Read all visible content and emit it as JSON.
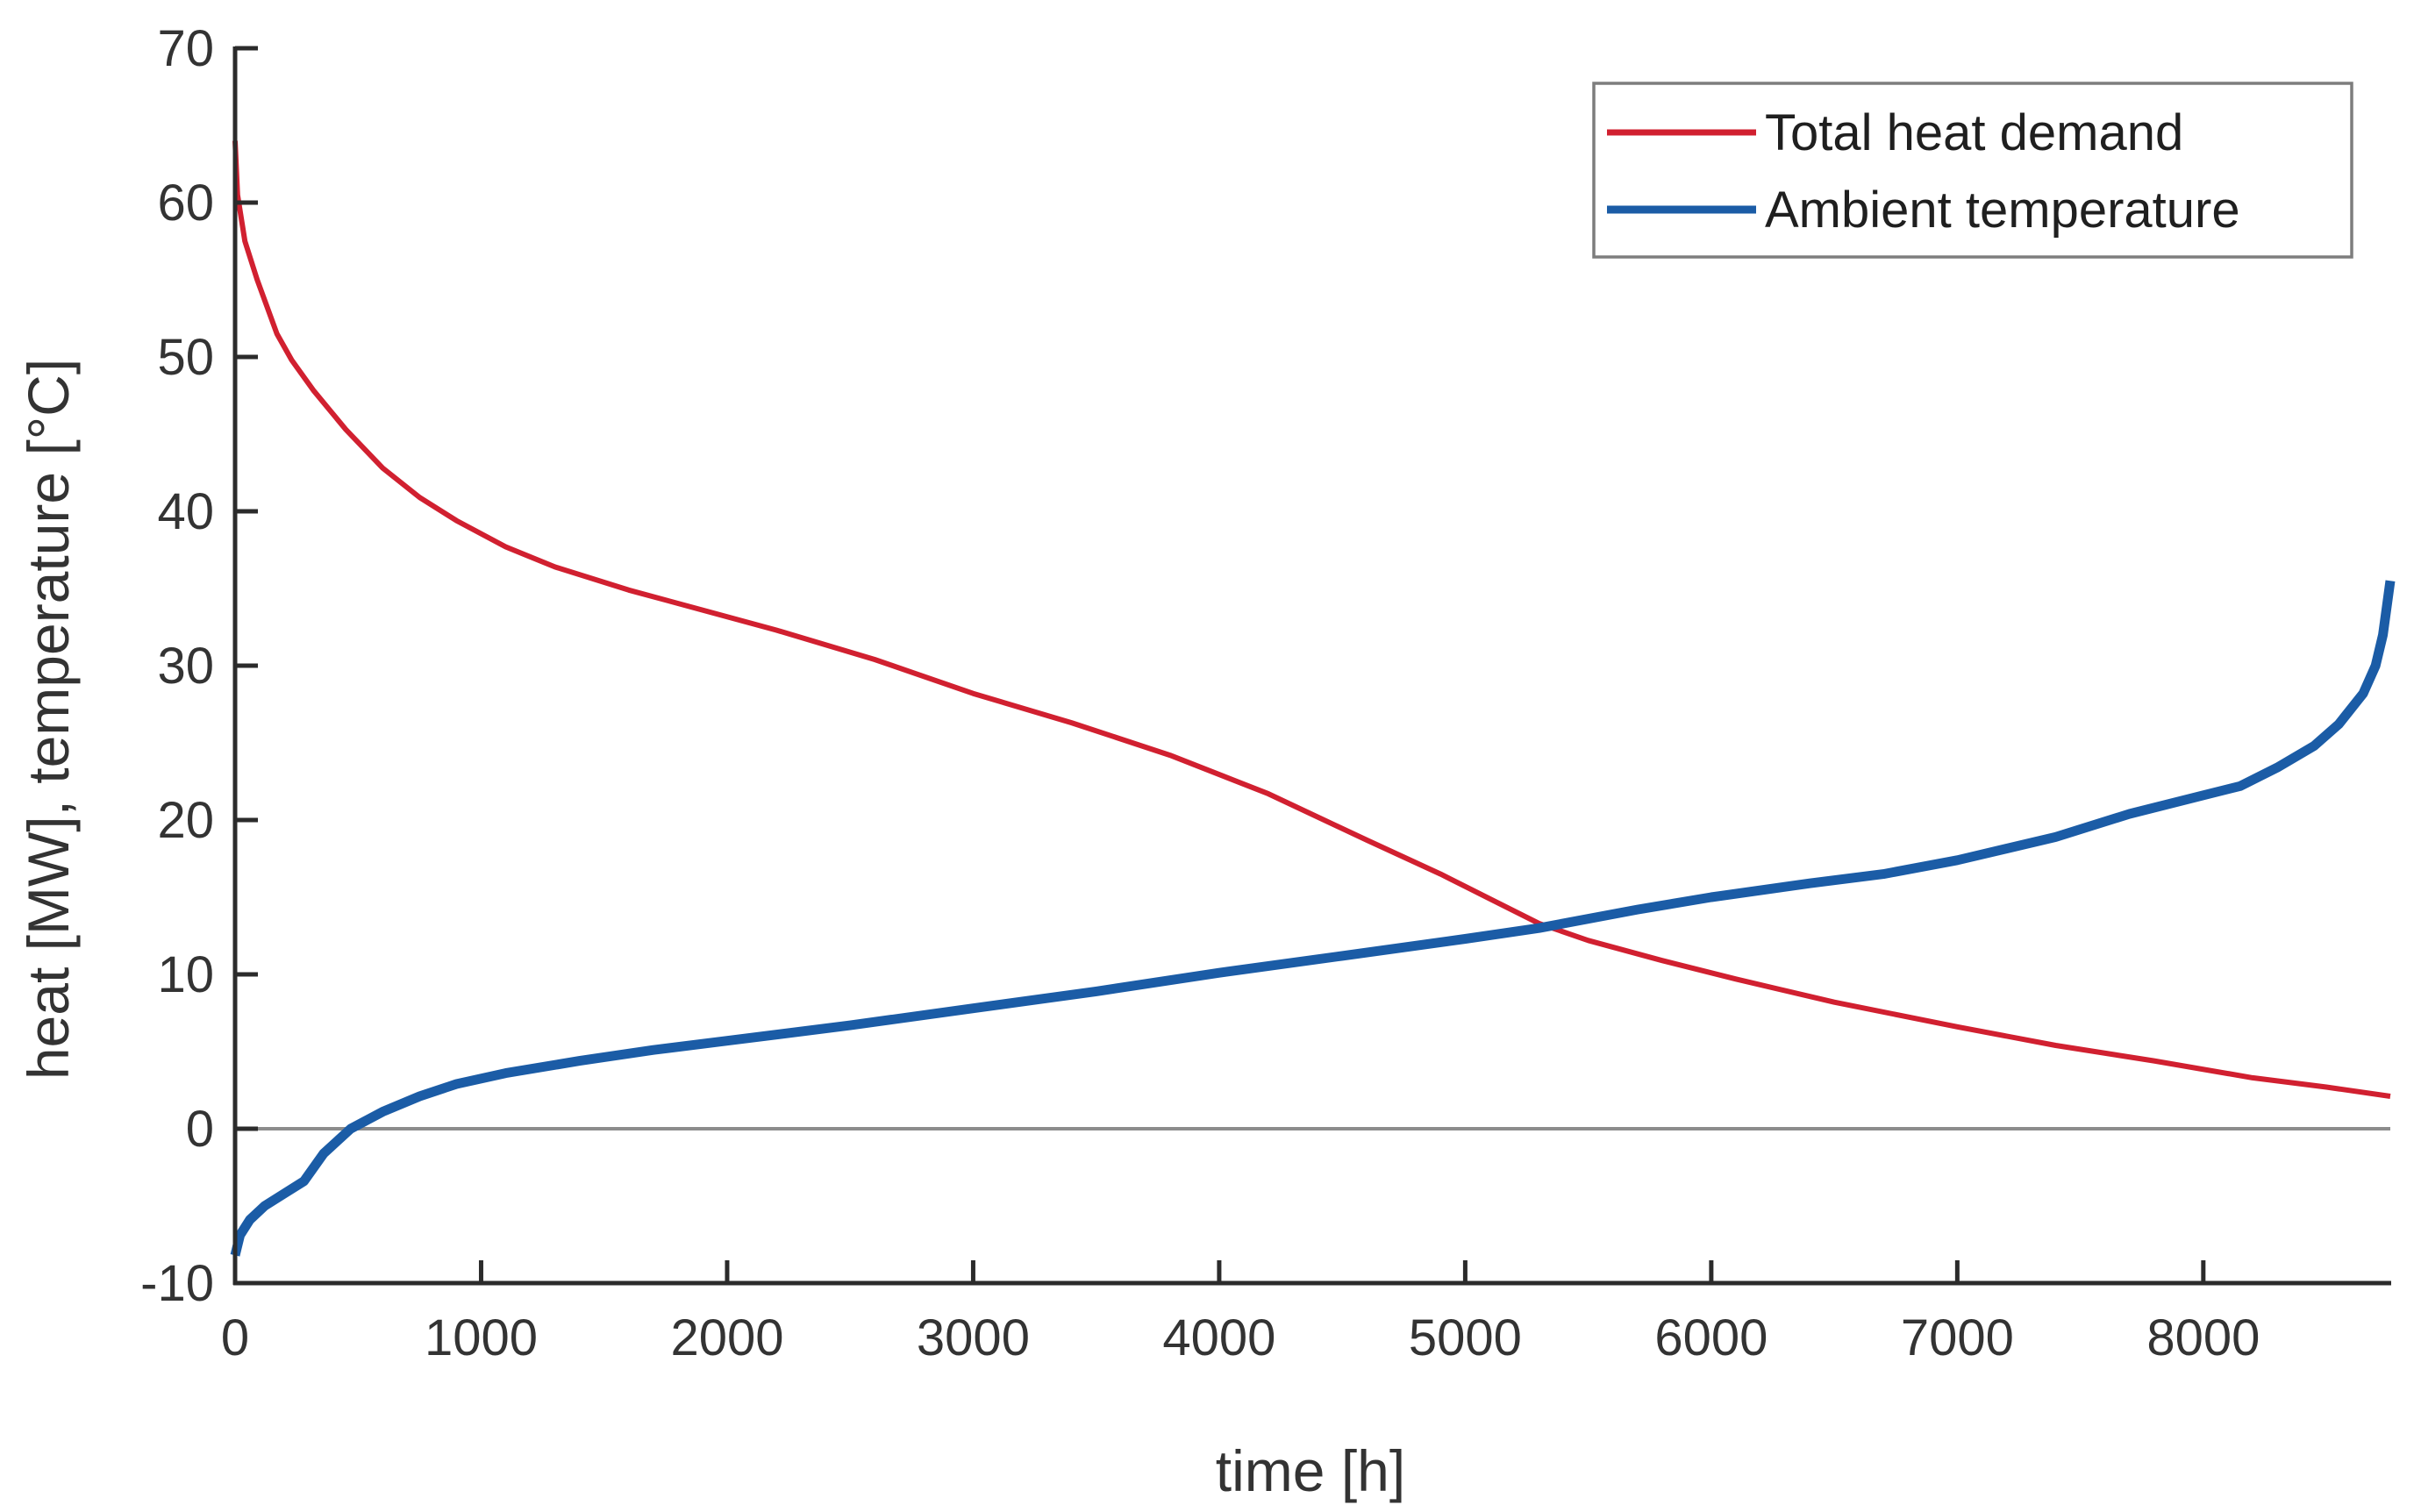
{
  "chart_data": {
    "type": "line",
    "xlabel": "time [h]",
    "ylabel": "heat [MW], temperature [°C]",
    "xlim": [
      0,
      8760
    ],
    "ylim": [
      -10,
      70
    ],
    "x_ticks": [
      0,
      1000,
      2000,
      3000,
      4000,
      5000,
      6000,
      7000,
      8000
    ],
    "y_ticks": [
      -10,
      0,
      10,
      20,
      30,
      40,
      50,
      60,
      70
    ],
    "grid": false,
    "zero_line_y": 0,
    "legend_position": "top-right",
    "series": [
      {
        "name": "Total heat demand",
        "color": "#d12030",
        "x": [
          0,
          10,
          40,
          90,
          170,
          230,
          320,
          450,
          600,
          750,
          900,
          1100,
          1300,
          1600,
          1900,
          2200,
          2600,
          3000,
          3400,
          3800,
          4200,
          4600,
          4900,
          5100,
          5300,
          5500,
          5800,
          6100,
          6500,
          7000,
          7400,
          7800,
          8200,
          8500,
          8760
        ],
        "y": [
          64,
          60.5,
          57.5,
          55,
          51.5,
          49.8,
          47.8,
          45.3,
          42.8,
          40.9,
          39.4,
          37.7,
          36.4,
          34.9,
          33.6,
          32.3,
          30.4,
          28.2,
          26.3,
          24.2,
          21.7,
          18.7,
          16.5,
          14.9,
          13.3,
          12.2,
          10.9,
          9.7,
          8.2,
          6.6,
          5.4,
          4.4,
          3.3,
          2.7,
          2.1
        ]
      },
      {
        "name": "Ambient temperature",
        "color": "#1b5ca6",
        "x": [
          0,
          20,
          60,
          120,
          200,
          280,
          360,
          470,
          600,
          750,
          900,
          1100,
          1400,
          1700,
          2000,
          2500,
          3000,
          3500,
          4000,
          4500,
          5000,
          5300,
          5700,
          6000,
          6400,
          6700,
          7000,
          7400,
          7700,
          8000,
          8150,
          8300,
          8450,
          8550,
          8650,
          8700,
          8730,
          8760
        ],
        "y": [
          -8.2,
          -6.9,
          -5.9,
          -5.0,
          -4.2,
          -3.4,
          -1.6,
          0,
          1.1,
          2.1,
          2.9,
          3.6,
          4.4,
          5.1,
          5.7,
          6.7,
          7.8,
          8.9,
          10.1,
          11.2,
          12.3,
          13.0,
          14.2,
          15.0,
          15.9,
          16.5,
          17.4,
          18.9,
          20.4,
          21.6,
          22.2,
          23.4,
          24.8,
          26.2,
          28.2,
          30.0,
          32.0,
          35.5
        ]
      }
    ],
    "colors": {
      "axis": "#2b2b2b",
      "zero_line": "#8c8c8c",
      "legend_border": "#7d7d7d",
      "text": "#333333"
    }
  }
}
